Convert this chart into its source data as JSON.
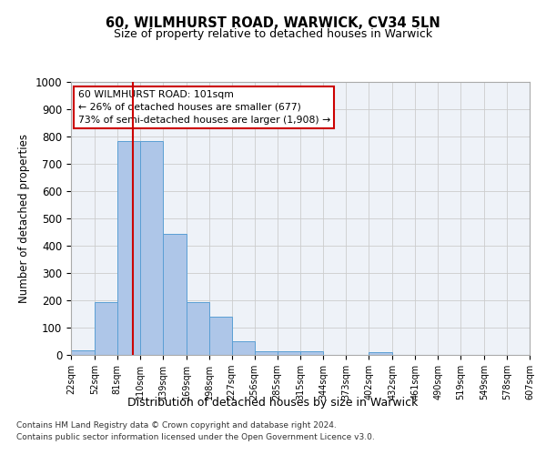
{
  "title1": "60, WILMHURST ROAD, WARWICK, CV34 5LN",
  "title2": "Size of property relative to detached houses in Warwick",
  "xlabel": "Distribution of detached houses by size in Warwick",
  "ylabel": "Number of detached properties",
  "bar_values": [
    18,
    195,
    785,
    785,
    443,
    195,
    140,
    50,
    15,
    13,
    13,
    0,
    0,
    10,
    0,
    0,
    0,
    0,
    0,
    0
  ],
  "bin_edges": [
    22,
    52,
    81,
    110,
    139,
    169,
    198,
    227,
    256,
    285,
    315,
    344,
    373,
    402,
    432,
    461,
    490,
    519,
    549,
    578,
    607
  ],
  "tick_labels": [
    "22sqm",
    "52sqm",
    "81sqm",
    "110sqm",
    "139sqm",
    "169sqm",
    "198sqm",
    "227sqm",
    "256sqm",
    "285sqm",
    "315sqm",
    "344sqm",
    "373sqm",
    "402sqm",
    "432sqm",
    "461sqm",
    "490sqm",
    "519sqm",
    "549sqm",
    "578sqm",
    "607sqm"
  ],
  "bar_color": "#aec6e8",
  "bar_edgecolor": "#5a9fd4",
  "grid_color": "#cccccc",
  "vline_x": 101,
  "vline_color": "#cc0000",
  "ylim": [
    0,
    1000
  ],
  "yticks": [
    0,
    100,
    200,
    300,
    400,
    500,
    600,
    700,
    800,
    900,
    1000
  ],
  "annotation_text": "60 WILMHURST ROAD: 101sqm\n← 26% of detached houses are smaller (677)\n73% of semi-detached houses are larger (1,908) →",
  "annotation_box_color": "#ffffff",
  "annotation_box_edgecolor": "#cc0000",
  "bg_color": "#eef2f8",
  "footer1": "Contains HM Land Registry data © Crown copyright and database right 2024.",
  "footer2": "Contains public sector information licensed under the Open Government Licence v3.0."
}
